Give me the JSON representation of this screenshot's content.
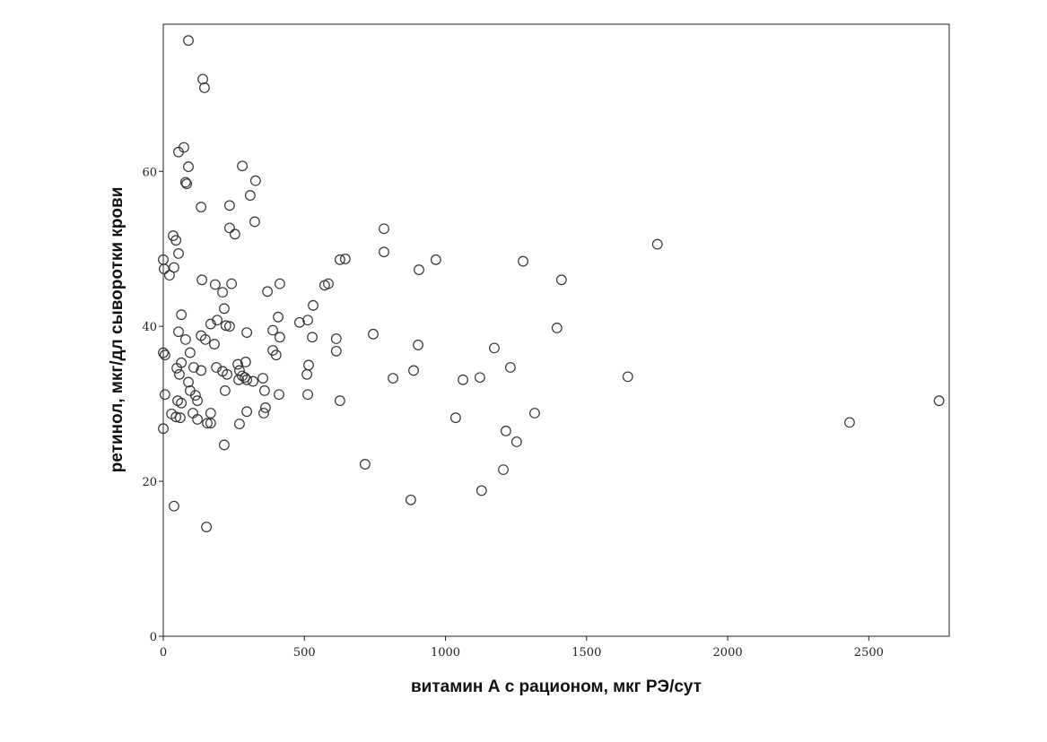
{
  "chart_data": {
    "type": "scatter",
    "x_label": "витамин А с рационом, мкг РЭ/сут",
    "y_label": "ретинол, мкг/дл сыворотки крови",
    "color": "#333333",
    "xlim": [
      0,
      2785
    ],
    "ylim": [
      0,
      79
    ],
    "xticks": [
      0,
      500,
      1000,
      1500,
      2000,
      2500
    ],
    "yticks": [
      0,
      20,
      40,
      60
    ],
    "x": [
      89,
      140,
      146,
      73,
      54,
      89,
      79,
      83,
      280,
      327,
      308,
      134,
      235,
      324,
      235,
      254,
      35,
      45,
      54,
      0,
      38,
      3,
      22,
      137,
      184,
      242,
      413,
      369,
      210,
      64,
      216,
      191,
      168,
      222,
      235,
      54,
      134,
      79,
      149,
      181,
      95,
      0,
      6,
      64,
      108,
      188,
      48,
      134,
      57,
      210,
      226,
      264,
      292,
      270,
      280,
      267,
      289,
      296,
      318,
      353,
      89,
      359,
      219,
      95,
      6,
      114,
      121,
      51,
      64,
      296,
      362,
      356,
      29,
      168,
      105,
      45,
      60,
      121,
      156,
      168,
      270,
      0,
      216,
      38,
      153,
      410,
      407,
      388,
      413,
      388,
      400,
      296,
      483,
      512,
      531,
      528,
      515,
      509,
      512,
      572,
      585,
      626,
      645,
      613,
      613,
      626,
      744,
      715,
      782,
      782,
      906,
      966,
      903,
      887,
      814,
      877,
      1036,
      1062,
      1122,
      1173,
      1230,
      1275,
      1214,
      1252,
      1205,
      1128,
      1316,
      1395,
      1411,
      1646,
      1751,
      2432,
      2749
    ],
    "y": [
      76.9,
      71.9,
      70.8,
      63.1,
      62.5,
      60.6,
      58.6,
      58.4,
      60.7,
      58.8,
      56.9,
      55.4,
      55.6,
      53.5,
      52.7,
      51.9,
      51.7,
      51.1,
      49.4,
      48.6,
      47.6,
      47.4,
      46.6,
      46.0,
      45.4,
      45.5,
      45.5,
      44.5,
      44.4,
      41.5,
      42.3,
      40.8,
      40.3,
      40.1,
      40.0,
      39.3,
      38.8,
      38.3,
      38.3,
      37.7,
      36.6,
      36.6,
      36.3,
      35.3,
      34.7,
      34.7,
      34.6,
      34.3,
      33.8,
      34.2,
      33.8,
      35.1,
      35.4,
      34.3,
      33.6,
      33.1,
      33.4,
      33.1,
      32.9,
      33.3,
      32.8,
      31.7,
      31.7,
      31.7,
      31.2,
      31.1,
      30.4,
      30.4,
      30.1,
      29.0,
      29.5,
      28.8,
      28.7,
      28.8,
      28.8,
      28.3,
      28.2,
      28.0,
      27.5,
      27.5,
      27.4,
      26.8,
      24.7,
      16.8,
      14.1,
      31.2,
      41.2,
      39.5,
      38.6,
      36.9,
      36.3,
      39.2,
      40.5,
      40.8,
      42.7,
      38.6,
      35.0,
      33.8,
      31.2,
      45.3,
      45.5,
      48.6,
      48.7,
      38.4,
      36.8,
      30.4,
      39.0,
      22.2,
      52.6,
      49.6,
      47.3,
      48.6,
      37.6,
      34.3,
      33.3,
      17.6,
      28.2,
      33.1,
      33.4,
      37.2,
      34.7,
      48.4,
      26.5,
      25.1,
      21.5,
      18.8,
      28.8,
      39.8,
      46.0,
      33.5,
      50.6,
      27.6,
      30.4
    ]
  }
}
